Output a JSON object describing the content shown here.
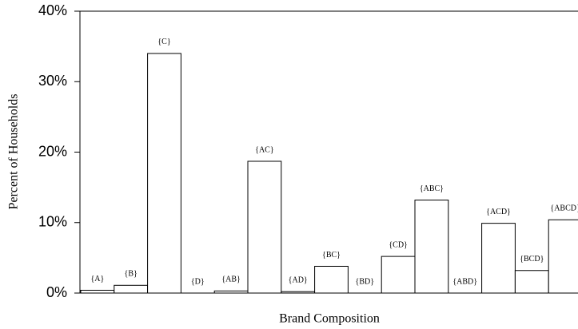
{
  "chart_data": {
    "type": "bar",
    "xlabel": "Brand Composition",
    "ylabel": "Percent of Households",
    "categories": [
      "{A}",
      "{B}",
      "{C}",
      "{D}",
      "{AB}",
      "{AC}",
      "{AD}",
      "{BC}",
      "{BD}",
      "{CD}",
      "{ABC}",
      "{ABD}",
      "{ACD}",
      "{BCD}",
      "{ABCD}"
    ],
    "values": [
      0.4,
      1.1,
      34,
      0,
      0.3,
      18.7,
      0.2,
      3.8,
      0,
      5.2,
      13.2,
      0,
      9.9,
      3.2,
      10.4
    ],
    "color": "#ffffff",
    "ylim": [
      0,
      40
    ],
    "yticks": [
      {
        "value": 0,
        "label": "0%"
      },
      {
        "value": 10,
        "label": "10%"
      },
      {
        "value": 20,
        "label": "20%"
      },
      {
        "value": 30,
        "label": "30%"
      },
      {
        "value": 40,
        "label": "40%"
      }
    ],
    "grid": false
  }
}
